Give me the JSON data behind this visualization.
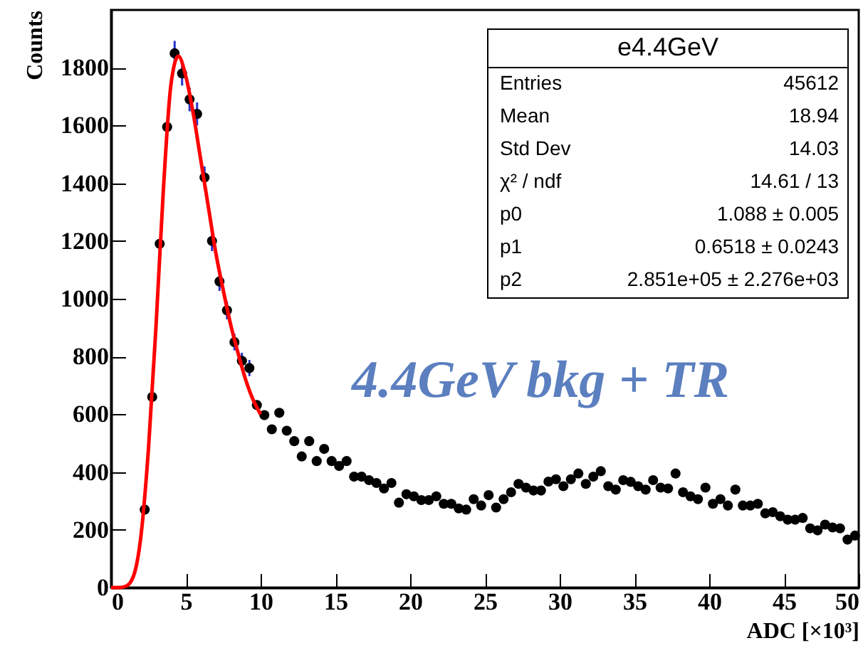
{
  "chart_data": {
    "type": "scatter",
    "xlabel": "ADC [×10³]",
    "ylabel": "Counts",
    "xlim": [
      0,
      50
    ],
    "ylim": [
      0,
      2000
    ],
    "xticks": [
      0,
      5,
      10,
      15,
      20,
      25,
      30,
      35,
      40,
      45,
      50
    ],
    "yticks": [
      0,
      200,
      400,
      600,
      800,
      1000,
      1200,
      1400,
      1600,
      1800
    ],
    "grid": false,
    "annotations": [
      "e4.4GeV",
      "Entries",
      "45612",
      "Mean",
      "18.94",
      "Std Dev",
      "14.03",
      "χ² / ndf",
      "14.61 / 13",
      "p0",
      "1.088 ± 0.005",
      "p1",
      "0.6518 ± 0.0243",
      "p2",
      "2.851e+05 ± 2.276e+03",
      "4.4GeV bkg + TR"
    ],
    "series": [
      {
        "color": "#000000",
        "marker": "circle",
        "x": [
          2.25,
          2.75,
          3.25,
          3.75,
          4.25,
          4.75,
          5.25,
          5.75,
          6.25,
          6.75,
          7.25,
          7.75,
          8.25,
          8.75,
          9.25,
          9.75,
          10.25,
          10.75,
          11.25,
          11.75,
          12.25,
          12.75,
          13.25,
          13.75,
          14.25,
          14.75,
          15.25,
          15.75,
          16.25,
          16.75,
          17.25,
          17.75,
          18.25,
          18.75,
          19.25,
          19.75,
          20.25,
          20.75,
          21.25,
          21.75,
          22.25,
          22.75,
          23.25,
          23.75,
          24.25,
          24.75,
          25.25,
          25.75,
          26.25,
          26.75,
          27.25,
          27.75,
          28.25,
          28.75,
          29.25,
          29.75,
          30.25,
          30.75,
          31.25,
          31.75,
          32.25,
          32.75,
          33.25,
          33.75,
          34.25,
          34.75,
          35.25,
          35.75,
          36.25,
          36.75,
          37.25,
          37.75,
          38.25,
          38.75,
          39.25,
          39.75,
          40.25,
          40.75,
          41.25,
          41.75,
          42.25,
          42.75,
          43.25,
          43.75,
          44.25,
          44.75,
          45.25,
          45.75,
          46.25,
          46.75,
          47.25,
          47.75,
          48.25,
          48.75,
          49.25,
          49.75
        ],
        "values": [
          270,
          660,
          1190,
          1595,
          1850,
          1780,
          1690,
          1640,
          1420,
          1200,
          1060,
          960,
          850,
          785,
          760,
          632,
          597,
          548,
          605,
          543,
          507,
          454,
          507,
          438,
          480,
          438,
          421,
          438,
          384,
          384,
          372,
          362,
          343,
          362,
          294,
          323,
          316,
          303,
          303,
          316,
          290,
          290,
          274,
          270,
          306,
          284,
          320,
          277,
          306,
          330,
          359,
          346,
          336,
          336,
          367,
          375,
          351,
          375,
          395,
          359,
          384,
          403,
          351,
          339,
          372,
          366,
          351,
          339,
          372,
          346,
          343,
          395,
          330,
          316,
          306,
          346,
          290,
          306,
          284,
          339,
          284,
          284,
          290,
          257,
          261,
          247,
          235,
          235,
          241,
          205,
          198,
          218,
          208,
          205,
          166,
          180
        ],
        "errors": [
          null,
          null,
          null,
          null,
          43,
          42,
          41,
          40,
          38,
          35,
          33,
          31,
          29,
          28,
          28,
          null,
          null,
          null,
          null,
          null,
          null,
          null,
          null,
          null,
          null,
          null,
          null,
          null,
          null,
          null,
          null,
          null,
          null,
          null,
          null,
          null,
          null,
          null,
          null,
          null,
          null,
          null,
          null,
          null,
          null,
          null,
          null,
          null,
          null,
          null,
          null,
          null,
          null,
          null,
          null,
          null,
          null,
          null,
          null,
          null,
          null,
          null,
          null,
          null,
          null,
          null,
          null,
          null,
          null,
          null,
          null,
          null,
          null,
          null,
          null,
          null,
          null,
          null,
          null,
          null,
          null,
          null,
          null,
          null,
          null,
          null,
          null,
          null,
          null,
          null,
          null,
          null,
          null,
          null,
          null,
          null
        ]
      },
      {
        "type": "line",
        "color": "#ff0000",
        "x": [
          0,
          0.5,
          1,
          1.5,
          2,
          2.5,
          3,
          3.5,
          4,
          4.5,
          5,
          5.5,
          6,
          6.5,
          7,
          7.5,
          8,
          8.5,
          9,
          9.5,
          10
        ],
        "values": [
          0,
          0,
          5,
          40,
          180,
          480,
          900,
          1380,
          1740,
          1840,
          1770,
          1640,
          1480,
          1320,
          1160,
          1030,
          910,
          810,
          720,
          650,
          600
        ]
      }
    ]
  }
}
